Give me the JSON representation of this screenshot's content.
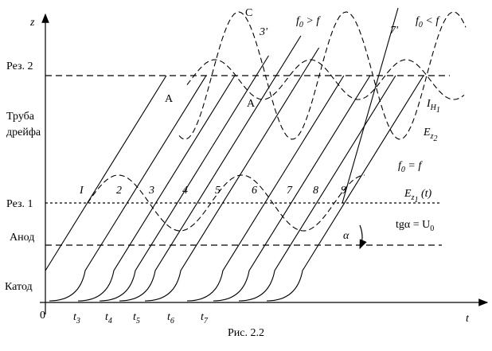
{
  "axes": {
    "z": "z",
    "t": "t",
    "origin": "0"
  },
  "levels": {
    "rez2": "Рез. 2",
    "drift": [
      "Труба",
      "дрейфа"
    ],
    "rez1": "Рез. 1",
    "anode": "Анод",
    "cathode": "Катод"
  },
  "time_ticks": [
    {
      "main": "t",
      "sub": "3"
    },
    {
      "main": "t",
      "sub": "4"
    },
    {
      "main": "t",
      "sub": "5"
    },
    {
      "main": "t",
      "sub": "6"
    },
    {
      "main": "t",
      "sub": "7"
    }
  ],
  "trajectories": [
    "I",
    "2",
    "3",
    "4",
    "5",
    "6",
    "7",
    "8",
    "9"
  ],
  "annotations": {
    "a1": "A",
    "a2": "A",
    "c": "C",
    "p3": "3'",
    "p7": "7'",
    "f_gt": {
      "main": "f",
      "sub": "0",
      "rest": " > f"
    },
    "f_lt": {
      "main": "f",
      "sub": "0",
      "rest": " < f"
    },
    "f_eq": {
      "main": "f",
      "sub": "0",
      "rest": " = f"
    },
    "ih1": {
      "main": "I",
      "sub": "H",
      "subsub": "1"
    },
    "ez2": {
      "main": "E",
      "sub": "z",
      "subsub": "2"
    },
    "ez1": {
      "main": "E",
      "sub": "z",
      "subsub": "1",
      "rest": " (t)"
    },
    "tg": {
      "main": "tgα = U",
      "sub": "0"
    },
    "alpha": "α"
  },
  "caption": "Рис. 2.2"
}
